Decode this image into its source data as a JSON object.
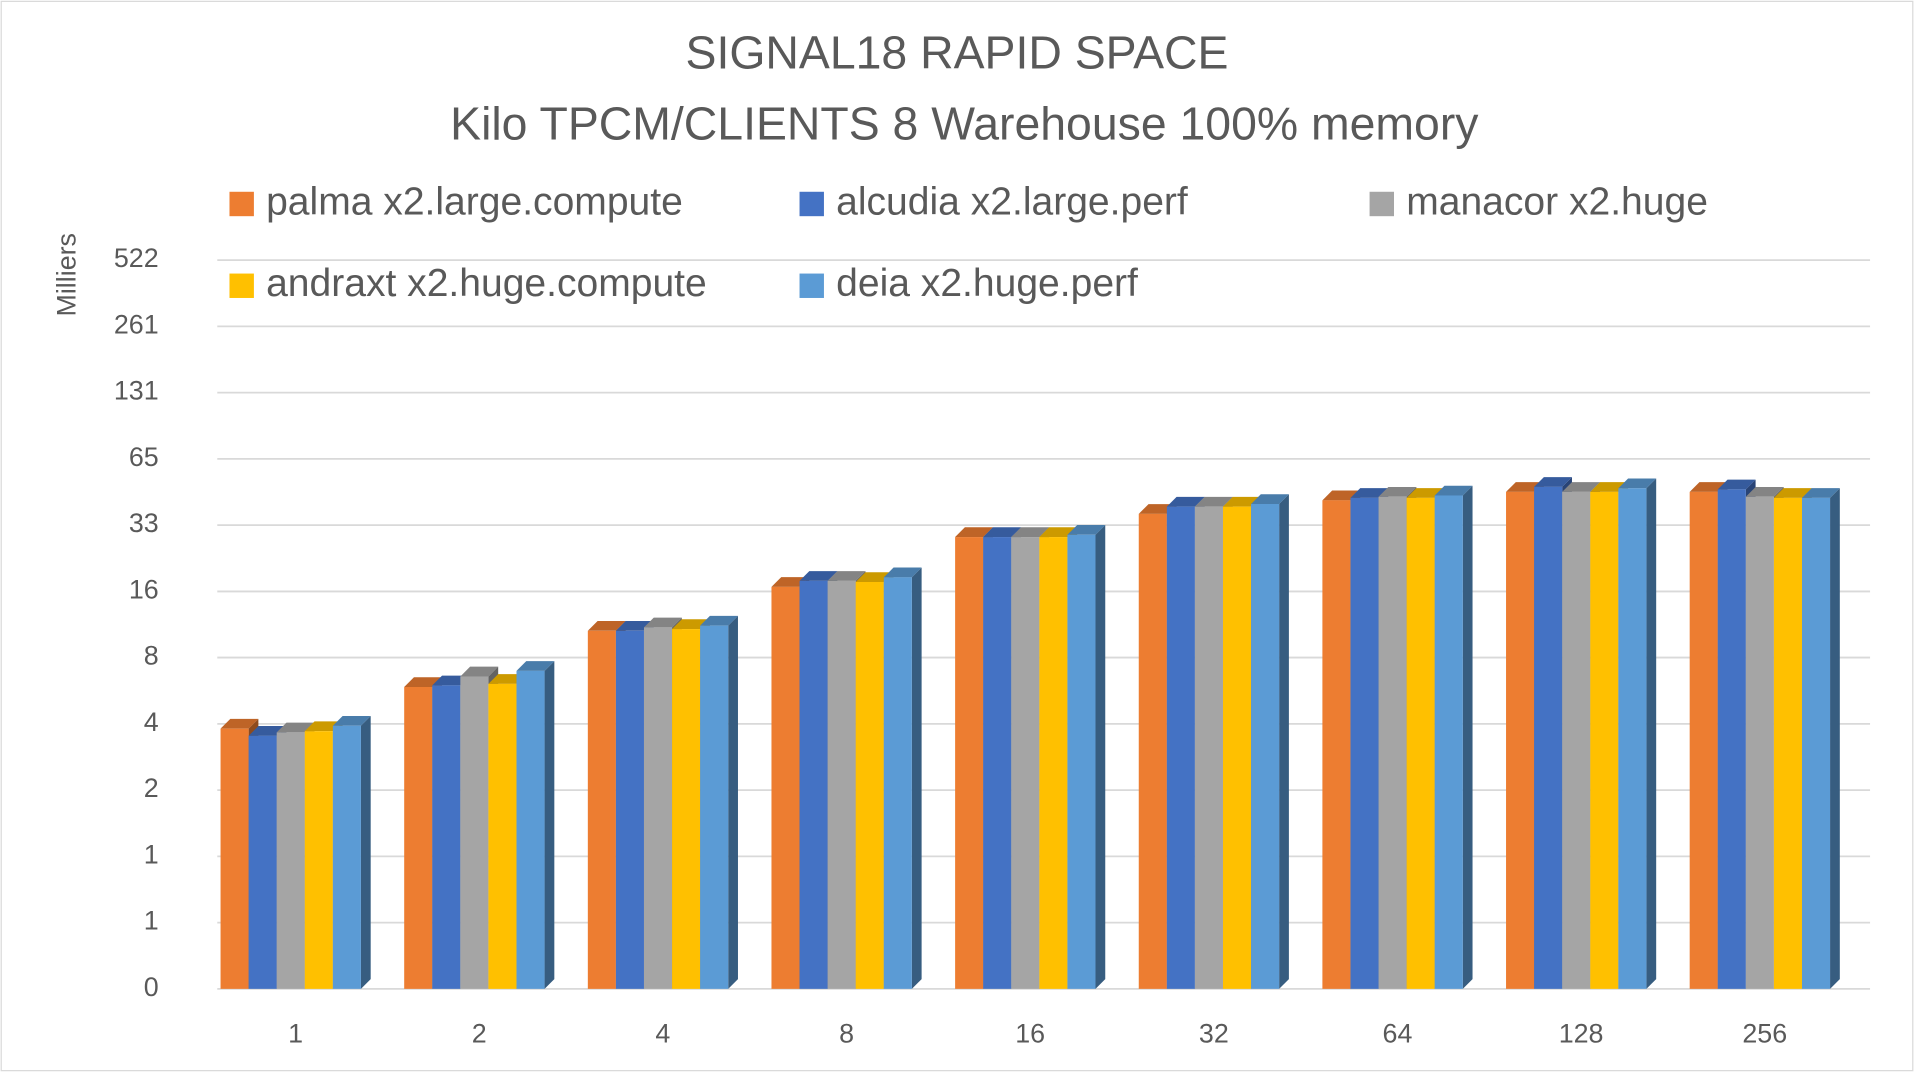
{
  "chart_data": {
    "type": "bar3d",
    "title": "SIGNAL18 RAPID SPACE",
    "subtitle": "Kilo TPCM/CLIENTS  8 Warehouse 100% memory",
    "y_label": "Milliers",
    "log_scale": true,
    "grid": true,
    "legend_position": "top",
    "categories": [
      "1",
      "2",
      "4",
      "8",
      "16",
      "32",
      "64",
      "128",
      "256"
    ],
    "series": [
      {
        "name": "palma x2.large.compute",
        "color": "#ed7d31",
        "values": [
          3.88,
          6.0,
          10.8,
          17.1,
          28.8,
          36.7,
          42.3,
          46.2,
          46.2
        ]
      },
      {
        "name": "alcudia x2.large.perf",
        "color": "#4472c4",
        "values": [
          3.6,
          6.1,
          10.8,
          18.2,
          28.8,
          39.6,
          43.4,
          48.7,
          47.4
        ]
      },
      {
        "name": "manacor x2.huge",
        "color": "#a5a5a5",
        "values": [
          3.73,
          6.7,
          11.2,
          18.2,
          28.8,
          39.6,
          43.9,
          46.2,
          43.9
        ]
      },
      {
        "name": "andraxt x2.huge.compute",
        "color": "#ffc000",
        "values": [
          3.78,
          6.2,
          11.0,
          18.0,
          28.8,
          39.6,
          43.4,
          46.2,
          43.4
        ]
      },
      {
        "name": "deia x2.huge.perf",
        "color": "#5b9bd5",
        "values": [
          4.0,
          7.1,
          11.4,
          18.9,
          29.5,
          40.7,
          44.5,
          48.0,
          43.4
        ]
      }
    ],
    "ylim": [
      0.255,
      522
    ],
    "yticks": [
      {
        "value": 0.255,
        "label": "0"
      },
      {
        "value": 0.51,
        "label": "1"
      },
      {
        "value": 1.02,
        "label": "1"
      },
      {
        "value": 2.04,
        "label": "2"
      },
      {
        "value": 4.08,
        "label": "4"
      },
      {
        "value": 8.16,
        "label": "8"
      },
      {
        "value": 16.31,
        "label": "16"
      },
      {
        "value": 32.63,
        "label": "33"
      },
      {
        "value": 65.25,
        "label": "65"
      },
      {
        "value": 130.5,
        "label": "131"
      },
      261,
      522
    ]
  }
}
